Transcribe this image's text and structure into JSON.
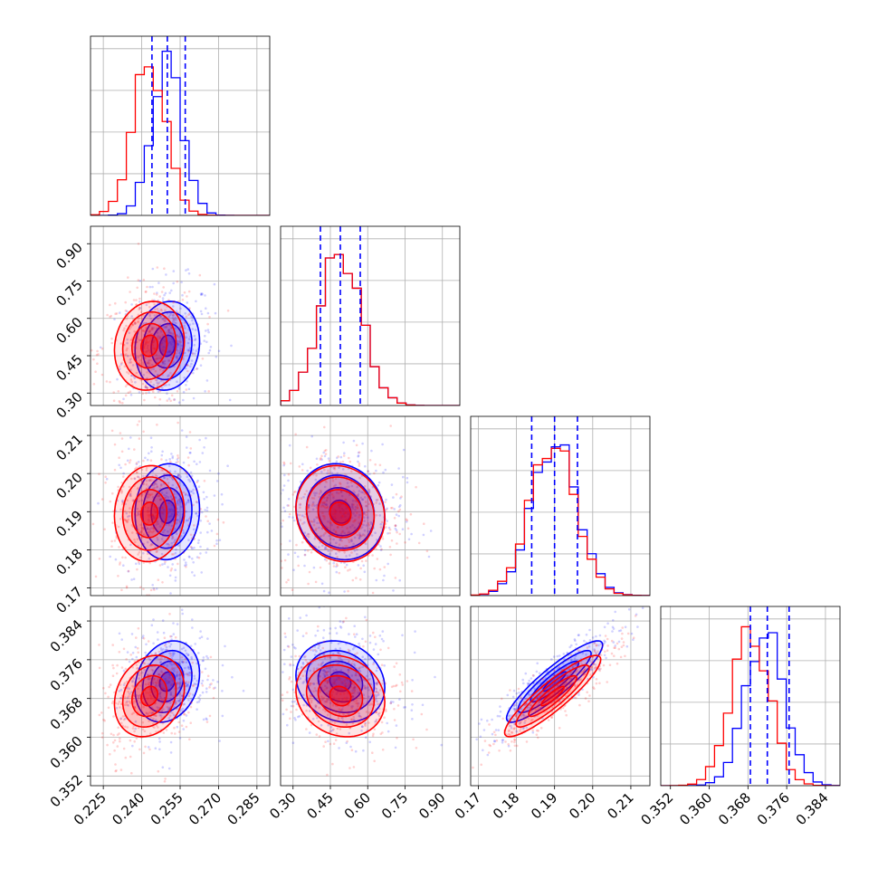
{
  "chart_data": {
    "type": "corner",
    "parameters": 4,
    "colors": {
      "posterior_a": "#0000ff",
      "posterior_b": "#ff0000"
    },
    "grid": true,
    "axes": [
      {
        "lim": [
          0.22,
          0.29
        ],
        "ticks": [
          "0.225",
          "0.240",
          "0.255",
          "0.270",
          "0.285"
        ],
        "tick_values": [
          0.225,
          0.24,
          0.255,
          0.27,
          0.285
        ],
        "blue_center": 0.25,
        "blue_sigma": 0.006,
        "red_center": 0.243,
        "red_sigma": 0.0065,
        "quantiles": [
          0.244,
          0.25,
          0.257
        ]
      },
      {
        "lim": [
          0.25,
          0.97
        ],
        "ticks": [
          "0.30",
          "0.45",
          "0.60",
          "0.75",
          "0.90"
        ],
        "tick_values": [
          0.3,
          0.45,
          0.6,
          0.75,
          0.9
        ],
        "blue_center": 0.49,
        "blue_sigma": 0.085,
        "red_center": 0.49,
        "red_sigma": 0.085,
        "quantiles": [
          0.41,
          0.49,
          0.57
        ]
      },
      {
        "lim": [
          0.168,
          0.215
        ],
        "ticks": [
          "0.17",
          "0.18",
          "0.19",
          "0.20",
          "0.21"
        ],
        "tick_values": [
          0.17,
          0.18,
          0.19,
          0.2,
          0.21
        ],
        "blue_center": 0.19,
        "blue_sigma": 0.006,
        "red_center": 0.1895,
        "red_sigma": 0.006,
        "quantiles": [
          0.184,
          0.19,
          0.196
        ]
      },
      {
        "lim": [
          0.35,
          0.387
        ],
        "ticks": [
          "0.352",
          "0.360",
          "0.368",
          "0.376",
          "0.384"
        ],
        "tick_values": [
          0.352,
          0.36,
          0.368,
          0.376,
          0.384
        ],
        "blue_center": 0.3715,
        "blue_sigma": 0.004,
        "red_center": 0.3685,
        "red_sigma": 0.004,
        "quantiles": [
          0.3685,
          0.372,
          0.3765
        ]
      }
    ],
    "correlations": {
      "3-2": 0.9,
      "3-1": -0.15,
      "2-1": -0.1,
      "1-0": 0.1,
      "2-0": 0.05,
      "3-0": 0.2
    }
  }
}
